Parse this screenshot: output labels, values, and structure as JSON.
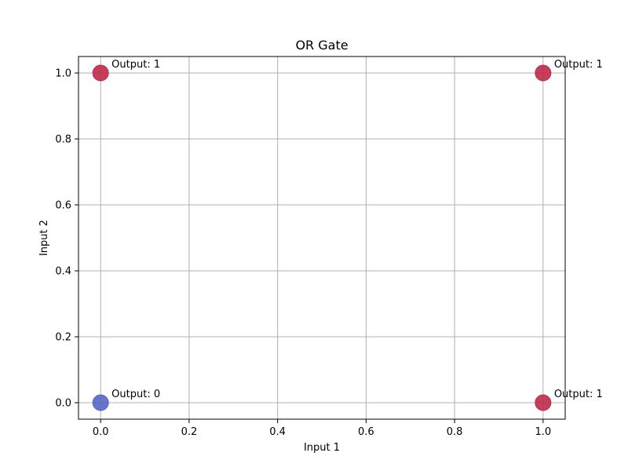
{
  "chart_data": {
    "type": "scatter",
    "title": "OR Gate",
    "xlabel": "Input 1",
    "ylabel": "Input 2",
    "xlim": [
      -0.05,
      1.05
    ],
    "ylim": [
      -0.05,
      1.05
    ],
    "xticks": [
      0.0,
      0.2,
      0.4,
      0.6,
      0.8,
      1.0
    ],
    "yticks": [
      0.0,
      0.2,
      0.4,
      0.6,
      0.8,
      1.0
    ],
    "xtick_labels": [
      "0.0",
      "0.2",
      "0.4",
      "0.6",
      "0.8",
      "1.0"
    ],
    "ytick_labels": [
      "0.0",
      "0.2",
      "0.4",
      "0.6",
      "0.8",
      "1.0"
    ],
    "grid": true,
    "points": [
      {
        "x": 0,
        "y": 0,
        "output": 0,
        "label": "Output: 0",
        "color": "#5865c6"
      },
      {
        "x": 0,
        "y": 1,
        "output": 1,
        "label": "Output: 1",
        "color": "#be2a49"
      },
      {
        "x": 1,
        "y": 0,
        "output": 1,
        "label": "Output: 1",
        "color": "#be2a49"
      },
      {
        "x": 1,
        "y": 1,
        "output": 1,
        "label": "Output: 1",
        "color": "#be2a49"
      }
    ]
  }
}
